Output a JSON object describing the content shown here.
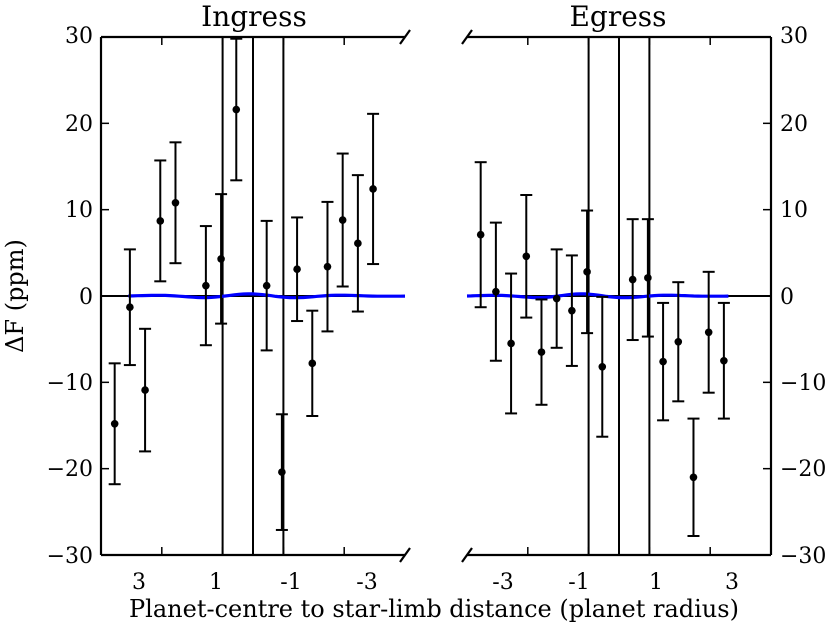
{
  "chart_data": {
    "type": "scatter",
    "ylabel": "ΔF (ppm)",
    "xlabel": "Planet-centre to star-limb distance (planet radius)",
    "ylim": [
      -30,
      30
    ],
    "yticks": [
      -30,
      -20,
      -10,
      0,
      10,
      20,
      30
    ],
    "yticklabels": [
      "−30",
      "−20",
      "−10",
      "0",
      "10",
      "20",
      "30"
    ],
    "panels": [
      {
        "title": "Ingress",
        "xlim": [
          5,
          -5
        ],
        "xticks": [
          3,
          1,
          -1,
          -3
        ],
        "xticklabels": [
          "3",
          "1",
          "-1",
          "-3"
        ],
        "vlines": [
          1,
          0,
          -1
        ],
        "points": [
          {
            "x": 4.55,
            "y": -14.8,
            "err": 7.0
          },
          {
            "x": 4.05,
            "y": -1.3,
            "err": 6.7
          },
          {
            "x": 3.55,
            "y": -10.9,
            "err": 7.1
          },
          {
            "x": 3.05,
            "y": 8.7,
            "err": 7.0
          },
          {
            "x": 2.55,
            "y": 10.8,
            "err": 7.0
          },
          {
            "x": 1.55,
            "y": 1.2,
            "err": 6.9
          },
          {
            "x": 1.05,
            "y": 4.3,
            "err": 7.5
          },
          {
            "x": 0.55,
            "y": 21.6,
            "err": 8.2
          },
          {
            "x": -0.45,
            "y": 1.2,
            "err": 7.5
          },
          {
            "x": -0.95,
            "y": -20.4,
            "err": 6.7
          },
          {
            "x": -1.45,
            "y": 3.1,
            "err": 6.0
          },
          {
            "x": -1.95,
            "y": -7.8,
            "err": 6.1
          },
          {
            "x": -2.45,
            "y": 3.4,
            "err": 7.5
          },
          {
            "x": -2.95,
            "y": 8.8,
            "err": 7.7
          },
          {
            "x": -3.45,
            "y": 6.1,
            "err": 7.9
          },
          {
            "x": -3.95,
            "y": 12.4,
            "err": 8.7
          }
        ],
        "model": {
          "x_start": 4.1,
          "x_end": -5.0
        }
      },
      {
        "title": "Egress",
        "xlim": [
          -5,
          5
        ],
        "xticks": [
          -3,
          -1,
          1,
          3
        ],
        "xticklabels": [
          "-3",
          "-1",
          "1",
          "3"
        ],
        "vlines": [
          -1,
          0,
          1
        ],
        "points": [
          {
            "x": -4.55,
            "y": 7.1,
            "err": 8.4
          },
          {
            "x": -4.05,
            "y": 0.5,
            "err": 8.0
          },
          {
            "x": -3.55,
            "y": -5.5,
            "err": 8.1
          },
          {
            "x": -3.05,
            "y": 4.6,
            "err": 7.1
          },
          {
            "x": -2.55,
            "y": -6.5,
            "err": 6.1
          },
          {
            "x": -2.05,
            "y": -0.3,
            "err": 5.7
          },
          {
            "x": -1.55,
            "y": -1.7,
            "err": 6.4
          },
          {
            "x": -1.05,
            "y": 2.8,
            "err": 7.1
          },
          {
            "x": -0.55,
            "y": -8.2,
            "err": 8.1
          },
          {
            "x": 0.45,
            "y": 1.9,
            "err": 7.0
          },
          {
            "x": 0.95,
            "y": 2.1,
            "err": 6.8
          },
          {
            "x": 1.45,
            "y": -7.6,
            "err": 6.8
          },
          {
            "x": 1.95,
            "y": -5.3,
            "err": 6.9
          },
          {
            "x": 2.45,
            "y": -21.0,
            "err": 6.8
          },
          {
            "x": 2.95,
            "y": -4.2,
            "err": 7.0
          },
          {
            "x": 3.45,
            "y": -7.5,
            "err": 6.7
          }
        ],
        "model": {
          "x_start": -5.0,
          "x_end": 3.6
        }
      }
    ],
    "colors": {
      "points": "#000000",
      "model": "#0000ff",
      "axes": "#000000"
    }
  }
}
